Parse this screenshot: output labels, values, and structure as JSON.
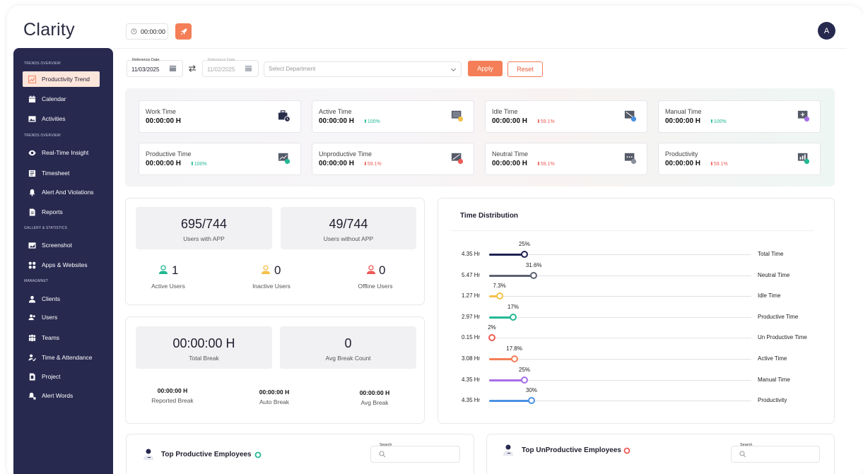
{
  "app": {
    "logo": "Clarity",
    "timer": "00:00:00",
    "avatar_initial": "A"
  },
  "colors": {
    "sidebar": "#27294f",
    "accent": "#f47e57",
    "up": "#1fb895",
    "down": "#ee5a55"
  },
  "sidebar": {
    "sections": [
      "TRENDS OVERVIEW",
      "TRENDS OVERVIEW",
      "GALLERY & STATISTICS",
      "MANAGMNET"
    ],
    "items": [
      {
        "label": "Productivity Trend",
        "icon": "chart-trend-icon",
        "active": true
      },
      {
        "label": "Calendar",
        "icon": "calendar-icon"
      },
      {
        "label": "Activities",
        "icon": "image-icon"
      },
      {
        "label": "Real-Time Insight",
        "icon": "eye-icon"
      },
      {
        "label": "Timesheet",
        "icon": "timesheet-icon"
      },
      {
        "label": "Alert And Violations",
        "icon": "bell-icon"
      },
      {
        "label": "Reports",
        "icon": "report-icon"
      },
      {
        "label": "Screenshot",
        "icon": "screenshot-icon"
      },
      {
        "label": "Apps & Websites",
        "icon": "apps-icon"
      },
      {
        "label": "Clients",
        "icon": "clients-icon"
      },
      {
        "label": "Users",
        "icon": "users-icon"
      },
      {
        "label": "Teams",
        "icon": "teams-icon"
      },
      {
        "label": "Time & Attendance",
        "icon": "attendance-icon"
      },
      {
        "label": "Project",
        "icon": "project-icon"
      },
      {
        "label": "Alert Words",
        "icon": "alert-words-icon"
      }
    ]
  },
  "filters": {
    "ref_label": "Reference Date",
    "ref_value": "11/03/2025",
    "ref2_label": "Reference Date",
    "ref2_value": "11/02/2025",
    "dept_placeholder": "Select Department",
    "apply": "Apply",
    "reset": "Reset"
  },
  "metrics": [
    {
      "title": "Work Time",
      "value": "00:00:00 H",
      "change": "",
      "dir": "",
      "icon": "briefcase-clock-icon"
    },
    {
      "title": "Active Time",
      "value": "00:00:00 H",
      "change": "100%",
      "dir": "up",
      "icon": "monitor-active-icon"
    },
    {
      "title": "Idle Time",
      "value": "00:00:00 H",
      "change": "59.1%",
      "dir": "down",
      "icon": "monitor-idle-icon"
    },
    {
      "title": "Manual Time",
      "value": "00:00:00 H",
      "change": "100%",
      "dir": "up",
      "icon": "manual-add-icon"
    },
    {
      "title": "Productive Time",
      "value": "00:00:00 H",
      "change": "100%",
      "dir": "up",
      "icon": "productive-icon"
    },
    {
      "title": "Unproductive Time",
      "value": "00:00:00 H",
      "change": "59.1%",
      "dir": "down",
      "icon": "unproductive-icon"
    },
    {
      "title": "Neutral Time",
      "value": "00:00:00 H",
      "change": "59.1%",
      "dir": "down",
      "icon": "neutral-icon"
    },
    {
      "title": "Productivity",
      "value": "00:00:00 H",
      "change": "59.1%",
      "dir": "down",
      "icon": "productivity-icon"
    }
  ],
  "users": {
    "with_app": "695/744",
    "with_app_label": "Users with APP",
    "without_app": "49/744",
    "without_app_label": "Users without APP",
    "active": "1",
    "active_label": "Active Users",
    "inactive": "0",
    "inactive_label": "Inactive Users",
    "offline": "0",
    "offline_label": "Offline Users"
  },
  "breaks": {
    "total": "00:00:00 H",
    "total_label": "Total Break",
    "avg_count": "0",
    "avg_count_label": "Avg Break Count",
    "reported": "00:00:00 H",
    "reported_label": "Reported Break",
    "auto": "00:00:00 H",
    "auto_label": "Auto Break",
    "avg": "00:00:00 H",
    "avg_label": "Avg Break"
  },
  "time_distribution": {
    "title": "Time Distribution",
    "rows": [
      {
        "hours": "4.35 Hr",
        "label": "Total Time",
        "percent": 25,
        "percent_label": "25%",
        "color": "#1f2153"
      },
      {
        "hours": "5.47 Hr",
        "label": "Neutral Time",
        "percent": 31.6,
        "percent_label": "31.6%",
        "color": "#5c6270"
      },
      {
        "hours": "1.27 Hr",
        "label": "Idle Time",
        "percent": 7.3,
        "percent_label": "7.3%",
        "color": "#f5c04a"
      },
      {
        "hours": "2.97 Hr",
        "label": "Productive Time",
        "percent": 17,
        "percent_label": "17%",
        "color": "#22b893"
      },
      {
        "hours": "0.15 Hr",
        "label": "Un Productive Time",
        "percent": 2,
        "percent_label": "2%",
        "color": "#ee5a55"
      },
      {
        "hours": "3.08 Hr",
        "label": "Active Time",
        "percent": 17.8,
        "percent_label": "17.8%",
        "color": "#f47e57"
      },
      {
        "hours": "4.35 Hr",
        "label": "Manual Time",
        "percent": 25,
        "percent_label": "25%",
        "color": "#a66ee6"
      },
      {
        "hours": "4.35 Hr",
        "label": "Productivity",
        "percent": 30,
        "percent_label": "30%",
        "color": "#4a90e2"
      }
    ]
  },
  "top_productive": {
    "title": "Top Productive Employees",
    "search_label": "Search"
  },
  "top_unproductive": {
    "title": "Top UnProductive Employees",
    "search_label": "Search"
  }
}
